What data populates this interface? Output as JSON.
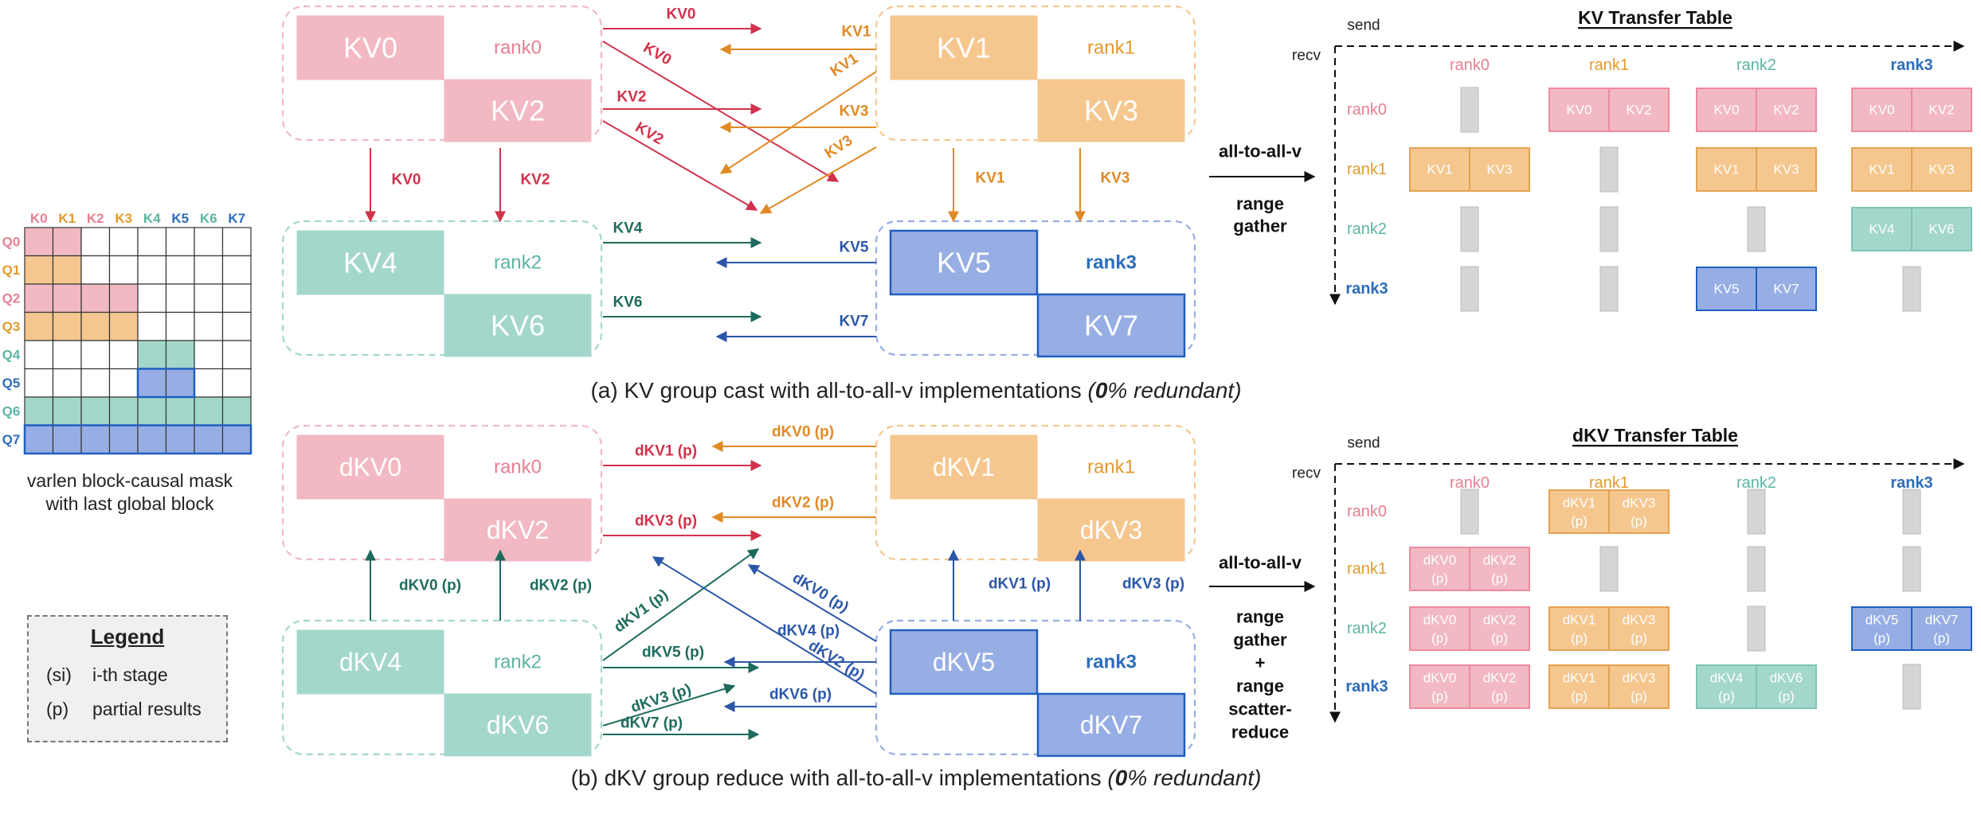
{
  "colors": {
    "rank0": "#f2b9c2",
    "rank0_text": "#e77f92",
    "rank0_arrow": "#d0324c",
    "rank1": "#f5c78f",
    "rank1_text": "#e39a2c",
    "rank1_arrow": "#e08a25",
    "rank2": "#a4d7cc",
    "rank2_text": "#5bb5a4",
    "rank2_arrow": "#1d6b5c",
    "rank3": "#97aee4",
    "rank3_text": "#2c6cba",
    "rank3_arrow": "#2c57a8",
    "empty": "#d5d5d5"
  },
  "mask": {
    "k_labels": [
      "K0",
      "K1",
      "K2",
      "K3",
      "K4",
      "K5",
      "K6",
      "K7"
    ],
    "q_labels": [
      "Q0",
      "Q1",
      "Q2",
      "Q3",
      "Q4",
      "Q5",
      "Q6",
      "Q7"
    ],
    "label_ranks": [
      0,
      1,
      0,
      1,
      2,
      3,
      2,
      3
    ],
    "cell_ranks": [
      [
        0,
        0,
        -1,
        -1,
        -1,
        -1,
        -1,
        -1
      ],
      [
        1,
        1,
        -1,
        -1,
        -1,
        -1,
        -1,
        -1
      ],
      [
        0,
        0,
        0,
        0,
        -1,
        -1,
        -1,
        -1
      ],
      [
        1,
        1,
        1,
        1,
        -1,
        -1,
        -1,
        -1
      ],
      [
        -1,
        -1,
        -1,
        -1,
        2,
        2,
        -1,
        -1
      ],
      [
        -1,
        -1,
        -1,
        -1,
        3,
        3,
        -1,
        -1
      ],
      [
        2,
        2,
        2,
        2,
        2,
        2,
        2,
        2
      ],
      [
        3,
        3,
        3,
        3,
        3,
        3,
        3,
        3
      ]
    ],
    "caption_line1": "varlen  block-causal mask",
    "caption_line2": "with last global block"
  },
  "legend": {
    "title": "Legend",
    "rows": [
      {
        "key": "(si)",
        "text": "i-th stage"
      },
      {
        "key": "(p)",
        "text": "partial results"
      }
    ]
  },
  "diagram_a": {
    "caption_prefix": "(a) KV group cast with all-to-all-v implementations ",
    "caption_emph_bold": "0",
    "caption_emph_rest": "% redundant)",
    "caption_emph_open": "(",
    "ranks": [
      {
        "name": "rank0",
        "blocks": [
          "KV0",
          "KV2"
        ]
      },
      {
        "name": "rank1",
        "blocks": [
          "KV1",
          "KV3"
        ]
      },
      {
        "name": "rank2",
        "blocks": [
          "KV4",
          "KV6"
        ]
      },
      {
        "name": "rank3",
        "blocks": [
          "KV5",
          "KV7"
        ]
      }
    ],
    "arrow_labels": {
      "top_r0_out": [
        "KV0",
        "KV0",
        "KV2",
        "KV2"
      ],
      "top_r1_out": [
        "KV1",
        "KV1",
        "KV3",
        "KV3"
      ],
      "r0_down": [
        "KV0",
        "KV2"
      ],
      "r1_down": [
        "KV1",
        "KV3"
      ],
      "mid_r2": [
        "KV4",
        "KV6"
      ],
      "mid_r3": [
        "KV5",
        "KV7"
      ]
    },
    "op_line1": "all-to-all-v",
    "op_line2": "range",
    "op_line3": "gather"
  },
  "diagram_b": {
    "caption_prefix": "(b) dKV group reduce with all-to-all-v implementations ",
    "caption_emph_bold": "0",
    "caption_emph_rest": "% redundant)",
    "caption_emph_open": "(",
    "ranks": [
      {
        "name": "rank0",
        "blocks": [
          "dKV0",
          "dKV2"
        ]
      },
      {
        "name": "rank1",
        "blocks": [
          "dKV1",
          "dKV3"
        ]
      },
      {
        "name": "rank2",
        "blocks": [
          "dKV4",
          "dKV6"
        ]
      },
      {
        "name": "rank3",
        "blocks": [
          "dKV5",
          "dKV7"
        ]
      }
    ],
    "arrow_labels": {
      "r0_in": [
        "dKV1 (p)",
        "dKV3 (p)"
      ],
      "r1_out": [
        "dKV0 (p)",
        "dKV2 (p)"
      ],
      "r2_up": [
        "dKV0 (p)",
        "dKV2 (p)"
      ],
      "r3_up": [
        "dKV1 (p)",
        "dKV3 (p)"
      ],
      "r2_out": [
        "dKV1 (p)",
        "dKV5 (p)",
        "dKV3 (p)",
        "dKV7 (p)"
      ],
      "r3_out": [
        "dKV0 (p)",
        "dKV4 (p)",
        "dKV2 (p)",
        "dKV6 (p)"
      ]
    },
    "op_line1": "all-to-all-v",
    "op_line2": "range",
    "op_line3": "gather",
    "op_line4": "+",
    "op_line5": "range",
    "op_line6": "scatter-",
    "op_line7": "reduce"
  },
  "table_a": {
    "title": "KV Transfer Table",
    "send_label": "send",
    "recv_label": "recv",
    "col_headers": [
      "rank0",
      "rank1",
      "rank2",
      "rank3"
    ],
    "row_headers": [
      "rank0",
      "rank1",
      "rank2",
      "rank3"
    ],
    "cells": [
      [
        [],
        [
          "KV0",
          "KV2"
        ],
        [
          "KV0",
          "KV2"
        ],
        [
          "KV0",
          "KV2"
        ]
      ],
      [
        [
          "KV1",
          "KV3"
        ],
        [],
        [
          "KV1",
          "KV3"
        ],
        [
          "KV1",
          "KV3"
        ]
      ],
      [
        [],
        [],
        [],
        [
          "KV4",
          "KV6"
        ]
      ],
      [
        [],
        [],
        [
          "KV5",
          "KV7"
        ],
        []
      ]
    ]
  },
  "table_b": {
    "title": "dKV Transfer Table",
    "send_label": "send",
    "recv_label": "recv",
    "col_headers": [
      "rank0",
      "rank1",
      "rank2",
      "rank3"
    ],
    "row_headers": [
      "rank0",
      "rank1",
      "rank2",
      "rank3"
    ],
    "partial_mark": "(p)",
    "cells": [
      [
        [],
        [
          "dKV1",
          "dKV3"
        ],
        [],
        []
      ],
      [
        [
          "dKV0",
          "dKV2"
        ],
        [],
        [],
        []
      ],
      [
        [
          "dKV0",
          "dKV2"
        ],
        [
          "dKV1",
          "dKV3"
        ],
        [],
        [
          "dKV5",
          "dKV7"
        ]
      ],
      [
        [
          "dKV0",
          "dKV2"
        ],
        [
          "dKV1",
          "dKV3"
        ],
        [
          "dKV4",
          "dKV6"
        ],
        []
      ]
    ]
  }
}
